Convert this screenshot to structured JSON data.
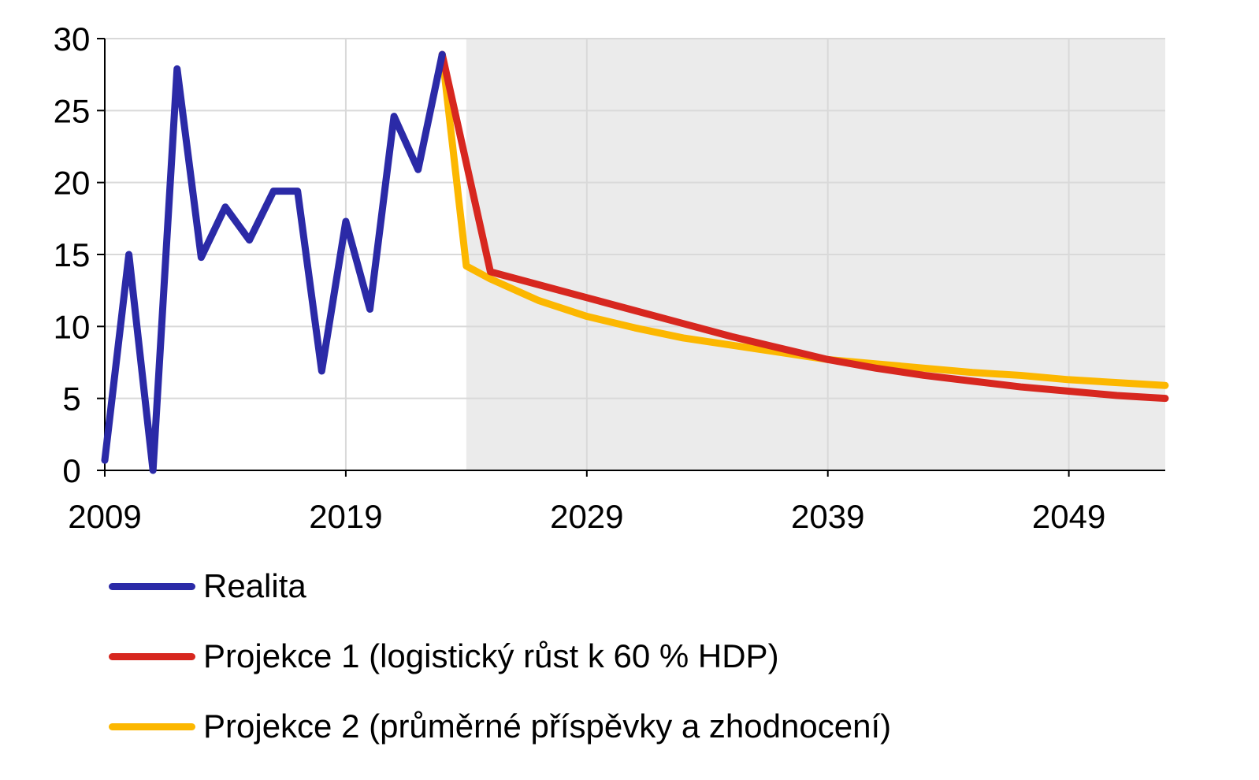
{
  "chart_data": {
    "type": "line",
    "title": "",
    "xlabel": "",
    "ylabel": "",
    "xlim": [
      2009,
      2053
    ],
    "ylim": [
      0,
      30
    ],
    "yticks": [
      0,
      5,
      10,
      15,
      20,
      25,
      30
    ],
    "xticks": [
      2009,
      2019,
      2029,
      2039,
      2049
    ],
    "grid": true,
    "shaded_region": {
      "from": 2024,
      "to": 2053,
      "color": "#ebebeb"
    },
    "legend_placement": "bottom",
    "series": [
      {
        "name": "Realita",
        "color": "#2b2aa7",
        "x": [
          2009,
          2010,
          2011,
          2012,
          2013,
          2014,
          2015,
          2016,
          2017,
          2018,
          2019,
          2020,
          2021,
          2022,
          2023
        ],
        "y": [
          0.7,
          15.0,
          0.0,
          27.9,
          14.8,
          18.3,
          16.0,
          19.4,
          19.4,
          6.9,
          17.3,
          11.2,
          24.6,
          20.9,
          28.9
        ]
      },
      {
        "name": "Projekce 1 (logistický růst k 60 % HDP)",
        "color": "#d7271f",
        "x": [
          2023,
          2025,
          2027,
          2029,
          2031,
          2033,
          2035,
          2037,
          2039,
          2041,
          2043,
          2045,
          2047,
          2049,
          2051,
          2053
        ],
        "y": [
          28.9,
          13.8,
          12.9,
          12.0,
          11.1,
          10.2,
          9.3,
          8.5,
          7.7,
          7.1,
          6.6,
          6.2,
          5.8,
          5.5,
          5.2,
          5.0
        ]
      },
      {
        "name": "Projekce 2 (průměrné příspěvky a zhodnocení)",
        "color": "#fcb700",
        "x": [
          2023,
          2024,
          2025,
          2027,
          2029,
          2031,
          2033,
          2035,
          2037,
          2039,
          2041,
          2043,
          2045,
          2047,
          2049,
          2051,
          2053
        ],
        "y": [
          28.9,
          14.2,
          13.3,
          11.8,
          10.7,
          9.9,
          9.2,
          8.7,
          8.2,
          7.7,
          7.4,
          7.1,
          6.8,
          6.6,
          6.3,
          6.1,
          5.9
        ]
      }
    ]
  }
}
